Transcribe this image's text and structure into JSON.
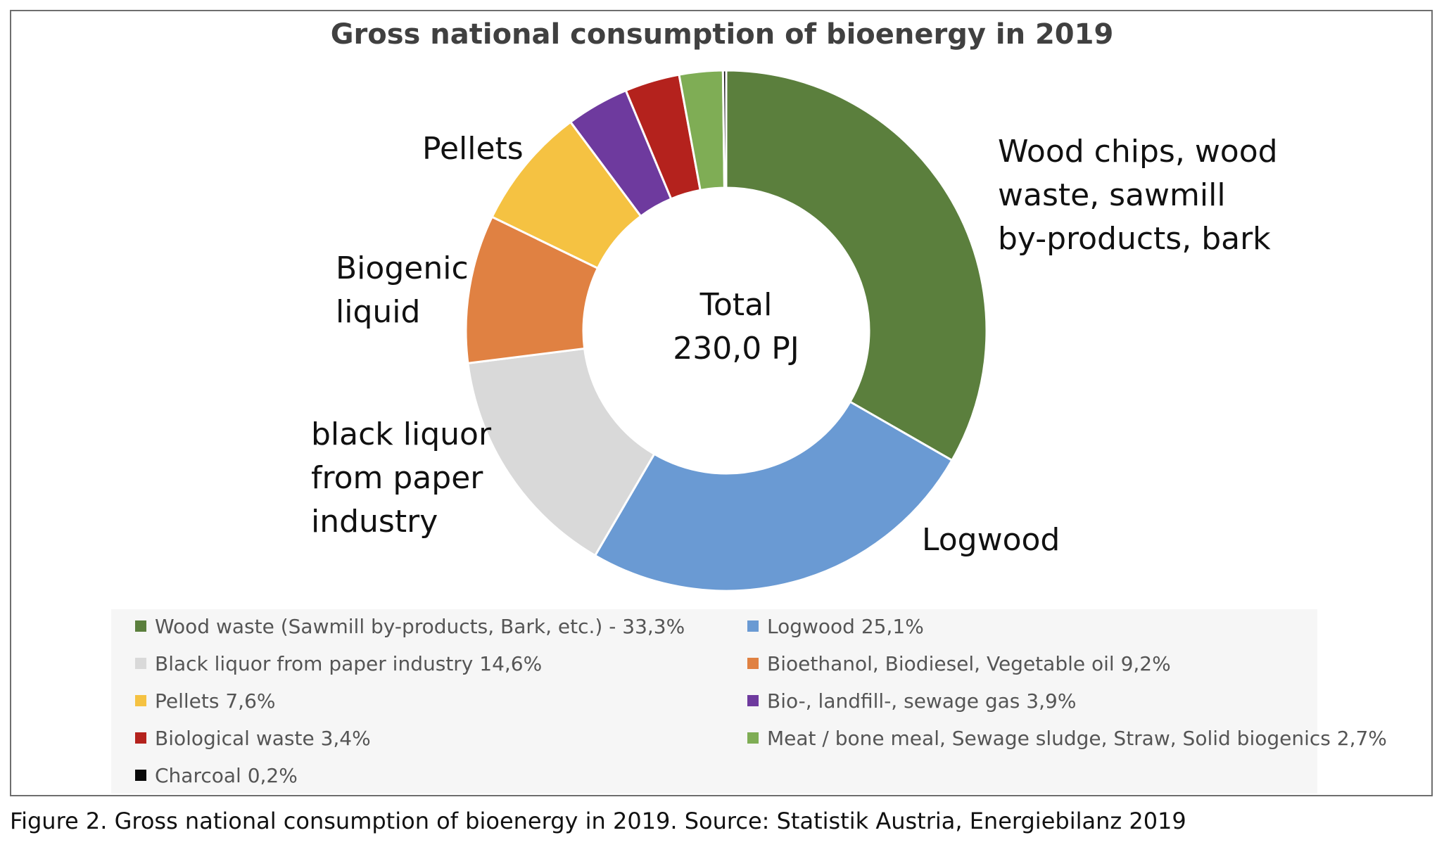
{
  "chart_data": {
    "type": "donut",
    "title": "Gross national consumption of bioenergy in 2019",
    "center_label": [
      "Total",
      "230,0 PJ"
    ],
    "unit": "%",
    "start_angle_deg": 0,
    "direction": "clockwise",
    "series": [
      {
        "name": "Wood waste (Sawmill by-products, Bark, etc.) - 33,3%",
        "value": 33.3,
        "color": "#5b7f3d",
        "slice_label": [
          "Wood chips, wood",
          "waste, sawmill",
          "by-products, bark"
        ]
      },
      {
        "name": "Logwood 25,1%",
        "value": 25.1,
        "color": "#6a9ad3",
        "slice_label": [
          "Logwood"
        ]
      },
      {
        "name": "Black liquor from paper industry 14,6%",
        "value": 14.6,
        "color": "#d9d9d9",
        "slice_label": [
          "black liquor",
          "from paper",
          "industry"
        ]
      },
      {
        "name": "Bioethanol, Biodiesel, Vegetable oil 9,2%",
        "value": 9.2,
        "color": "#e08142",
        "slice_label": [
          "Biogenic",
          "liquid"
        ]
      },
      {
        "name": "Pellets 7,6%",
        "value": 7.6,
        "color": "#f5c242",
        "slice_label": [
          "Pellets"
        ]
      },
      {
        "name": "Bio-, landfill-, sewage gas 3,9%",
        "value": 3.9,
        "color": "#6e3a9e",
        "slice_label": []
      },
      {
        "name": "Biological waste 3,4%",
        "value": 3.4,
        "color": "#b4221d",
        "slice_label": []
      },
      {
        "name": "Meat / bone meal, Sewage sludge, Straw, Solid biogenics 2,7%",
        "value": 2.7,
        "color": "#7fad55",
        "slice_label": []
      },
      {
        "name": "Charcoal 0,2%",
        "value": 0.2,
        "color": "#0a0a0a",
        "slice_label": []
      }
    ],
    "legend_position": "bottom"
  },
  "caption": "Figure 2. Gross national consumption of bioenergy in 2019. Source: Statistik Austria, Energiebilanz 2019"
}
